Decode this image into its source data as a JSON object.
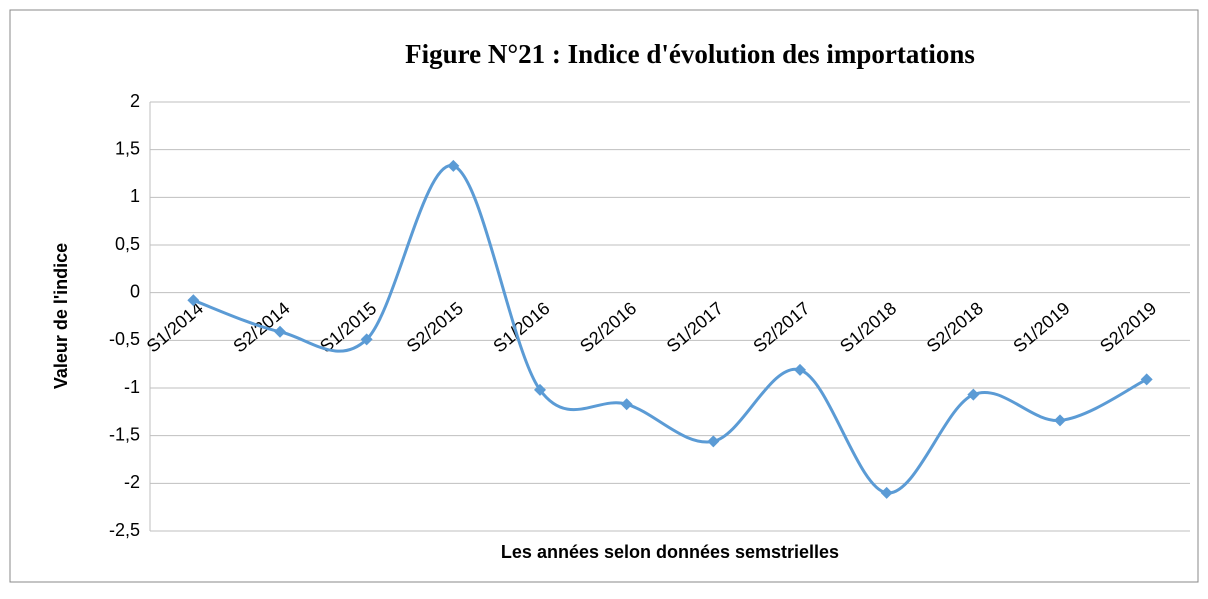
{
  "chart_data": {
    "type": "line",
    "title": "Figure N°21 : Indice d'évolution des importations",
    "x_label": "Les années selon données semstrielles",
    "y_label": "Valeur de l'indice",
    "categories": [
      "S1/2014",
      "S2/2014",
      "S1/2015",
      "S2/2015",
      "S1/2016",
      "S2/2016",
      "S1/2017",
      "S2/2017",
      "S1/2018",
      "S2/2018",
      "S1/2019",
      "S2/2019"
    ],
    "series": [
      {
        "color": "#5b9bd5",
        "values": [
          -0.08,
          -0.41,
          -0.49,
          1.33,
          -1.02,
          -1.17,
          -1.56,
          -0.81,
          -2.1,
          -1.07,
          -1.34,
          -0.91
        ]
      }
    ],
    "ylim": [
      -2.5,
      2
    ],
    "yticks": [
      {
        "value": -2.5,
        "label": "-2,5"
      },
      -2,
      {
        "value": -1.5,
        "label": "-1,5"
      },
      -1,
      {
        "value": -0.5,
        "label": "-0,5"
      },
      0,
      {
        "value": 0.5,
        "label": "0,5"
      },
      1,
      {
        "value": 1.5,
        "label": "1,5"
      },
      2
    ],
    "grid": true,
    "smooth": true,
    "marker": "diamond"
  }
}
